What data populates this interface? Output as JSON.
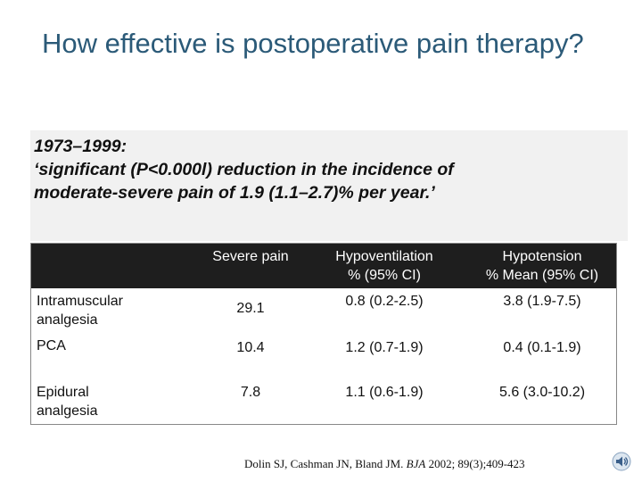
{
  "slide": {
    "title": "How effective is postoperative pain therapy?",
    "quote_line1": "1973–1999:",
    "quote_line2": "‘significant (P<0.000l) reduction in the incidence of",
    "quote_line3": "moderate-severe pain of 1.9 (1.1–2.7)% per year.’"
  },
  "table": {
    "headers": {
      "col1": "Severe pain",
      "col2_line1": "Hypoventilation",
      "col2_line2": "% (95% CI)",
      "col3_line1": "Hypotension",
      "col3_line2": "% Mean (95% CI)"
    },
    "rows": [
      {
        "label_line1": "Intramuscular",
        "label_line2": "analgesia",
        "severe_pain": "29.1",
        "hypoventilation": "0.8 (0.2-2.5)",
        "hypotension": "3.8 (1.9-7.5)"
      },
      {
        "label_line1": "PCA",
        "label_line2": "",
        "severe_pain": "10.4",
        "hypoventilation": "1.2 (0.7-1.9)",
        "hypotension": "0.4 (0.1-1.9)"
      },
      {
        "label_line1": "Epidural",
        "label_line2": "analgesia",
        "severe_pain": "7.8",
        "hypoventilation": "1.1 (0.6-1.9)",
        "hypotension": "5.6 (3.0-10.2)"
      }
    ]
  },
  "citation": {
    "authors": "Dolin SJ, Cashman JN, Bland JM.",
    "journal": "BJA",
    "details": "2002; 89(3);409-423"
  },
  "icons": {
    "audio": "speaker-icon"
  },
  "colors": {
    "title": "#2b5a78",
    "header_bg": "#1e1e1e",
    "quote_bg": "#f1f1f1"
  }
}
